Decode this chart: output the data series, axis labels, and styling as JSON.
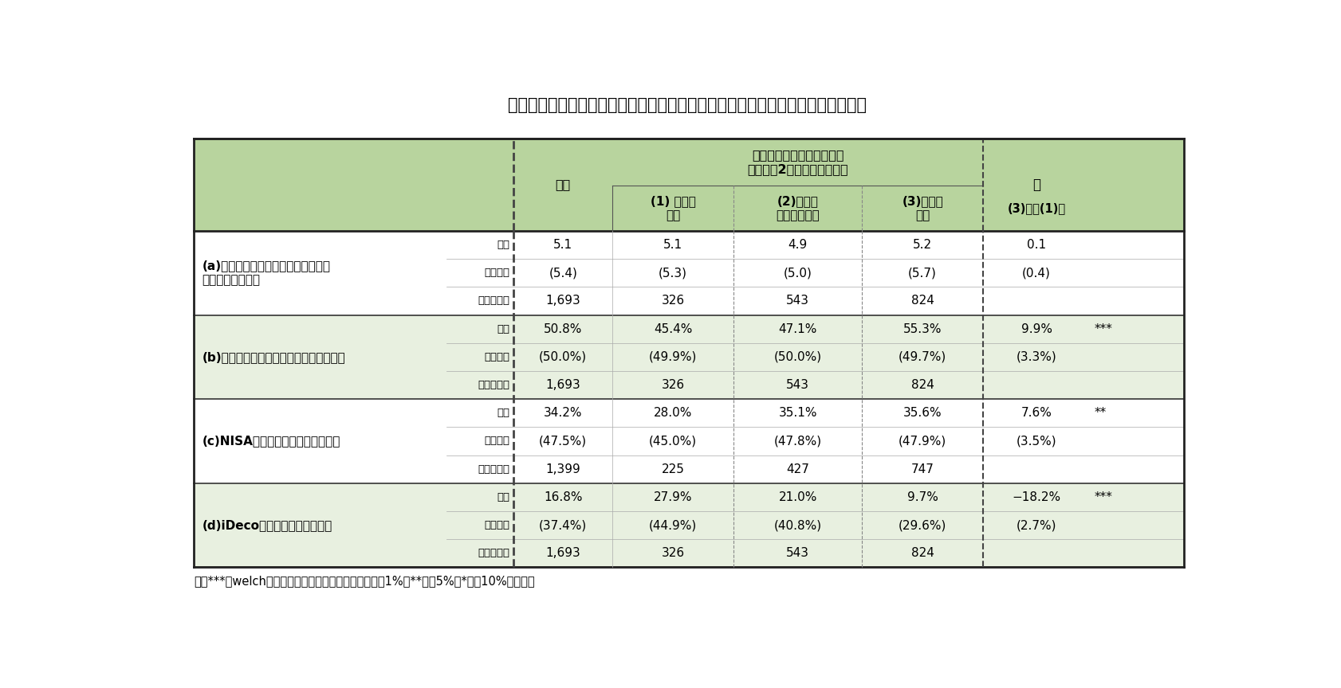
{
  "title": "図表１：公的年金の支給開始年齢引き上げの可能性と将来に向けた貯蓄との関係",
  "note": "注：***はwelch法による平均値の差の検定で有意水準1%、**は同5%、*は同10%を表す。",
  "header_merged": "公的年金の支給開始年齢が\n将来的に2歳引き上げられる",
  "header_sa": "差",
  "header_zentai": "全体",
  "header_low": "(1) 可能性\n低い",
  "header_mid": "(2)どちら\nともいえない",
  "header_high": "(3)可能性\n高い",
  "header_diff": "(3)高ー(1)低",
  "bg_header": "#b8d49e",
  "bg_white": "#ffffff",
  "bg_light": "#e8f0e0",
  "text_color": "#000000",
  "title_fontsize": 15,
  "cell_fontsize": 11,
  "header_fontsize": 11,
  "note_fontsize": 10.5,
  "sections": [
    {
      "label_line1": "(a)将来に備えるための毎月の貯蓄額",
      "label_line2": "（単位：月万円）",
      "rows": [
        {
          "type": "平均",
          "zentai": "5.1",
          "low": "5.1",
          "mid": "4.9",
          "high": "5.2",
          "diff": "0.1",
          "sig": ""
        },
        {
          "type": "標準偏差",
          "zentai": "(5.4)",
          "low": "(5.3)",
          "mid": "(5.0)",
          "high": "(5.7)",
          "diff": "(0.4)",
          "sig": ""
        },
        {
          "type": "サンプル数",
          "zentai": "1,693",
          "low": "326",
          "mid": "543",
          "high": "824",
          "diff": "",
          "sig": ""
        }
      ],
      "bg": "#ffffff"
    },
    {
      "label_line1": "(b)株式・株式投信を保有する家計の割合",
      "label_line2": "",
      "rows": [
        {
          "type": "平均",
          "zentai": "50.8%",
          "low": "45.4%",
          "mid": "47.1%",
          "high": "55.3%",
          "diff": "9.9%",
          "sig": "***"
        },
        {
          "type": "標準偏差",
          "zentai": "(50.0%)",
          "low": "(49.9%)",
          "mid": "(50.0%)",
          "high": "(49.7%)",
          "diff": "(3.3%)",
          "sig": ""
        },
        {
          "type": "サンプル数",
          "zentai": "1,693",
          "low": "326",
          "mid": "543",
          "high": "824",
          "diff": "",
          "sig": ""
        }
      ],
      "bg": "#e8f0e0"
    },
    {
      "label_line1": "(c)NISAに加入している家計の割合",
      "label_line2": "",
      "rows": [
        {
          "type": "平均",
          "zentai": "34.2%",
          "low": "28.0%",
          "mid": "35.1%",
          "high": "35.6%",
          "diff": "7.6%",
          "sig": "**"
        },
        {
          "type": "標準偏差",
          "zentai": "(47.5%)",
          "low": "(45.0%)",
          "mid": "(47.8%)",
          "high": "(47.9%)",
          "diff": "(3.5%)",
          "sig": ""
        },
        {
          "type": "サンプル数",
          "zentai": "1,399",
          "low": "225",
          "mid": "427",
          "high": "747",
          "diff": "",
          "sig": ""
        }
      ],
      "bg": "#ffffff"
    },
    {
      "label_line1": "(d)iDecoを知らない家計の割合",
      "label_line2": "",
      "rows": [
        {
          "type": "平均",
          "zentai": "16.8%",
          "low": "27.9%",
          "mid": "21.0%",
          "high": "9.7%",
          "diff": "−18.2%",
          "sig": "***"
        },
        {
          "type": "標準偏差",
          "zentai": "(37.4%)",
          "low": "(44.9%)",
          "mid": "(40.8%)",
          "high": "(29.6%)",
          "diff": "(2.7%)",
          "sig": ""
        },
        {
          "type": "サンプル数",
          "zentai": "1,693",
          "low": "326",
          "mid": "543",
          "high": "824",
          "diff": "",
          "sig": ""
        }
      ],
      "bg": "#e8f0e0"
    }
  ]
}
